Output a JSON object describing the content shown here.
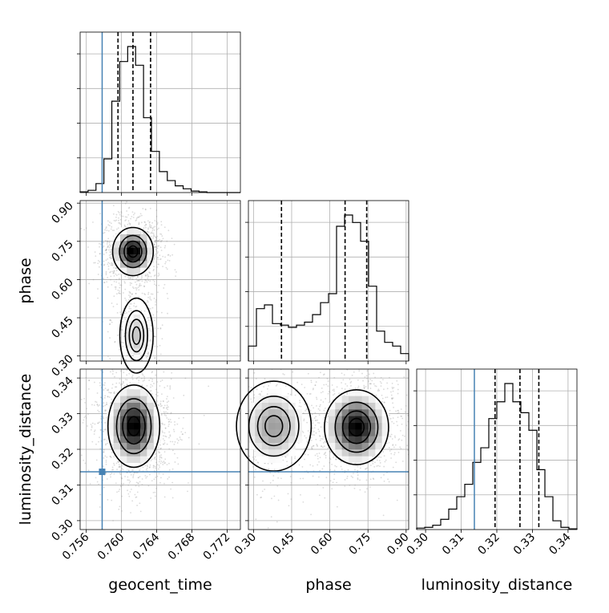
{
  "colors": {
    "truth": "#4682b4",
    "line": "#000000",
    "grid": "#b0b0b0",
    "density": "#000000"
  },
  "chart_data": {
    "type": "corner",
    "parameters": [
      "geocent_time",
      "phase",
      "luminosity_distance"
    ],
    "axis_labels": {
      "geocent_time": "geocent_time",
      "phase": "phase",
      "luminosity_distance": "luminosity_distance"
    },
    "ranges": {
      "geocent_time": [
        0.7553,
        0.7735
      ],
      "phase": [
        0.28,
        0.91
      ],
      "luminosity_distance": [
        0.2975,
        0.3425
      ]
    },
    "ticks": {
      "geocent_time": [
        "0.756",
        "0.760",
        "0.764",
        "0.768",
        "0.772"
      ],
      "phase": [
        "0.30",
        "0.45",
        "0.60",
        "0.75",
        "0.90"
      ],
      "luminosity_distance": [
        "0.30",
        "0.31",
        "0.32",
        "0.33",
        "0.34"
      ]
    },
    "tick_values": {
      "geocent_time": [
        0.756,
        0.76,
        0.764,
        0.768,
        0.772
      ],
      "phase": [
        0.3,
        0.45,
        0.6,
        0.75,
        0.9
      ],
      "luminosity_distance": [
        0.3,
        0.31,
        0.32,
        0.33,
        0.34
      ]
    },
    "truths": {
      "geocent_time": 0.7578,
      "luminosity_distance": 0.3137
    },
    "quantiles": {
      "geocent_time": [
        0.7596,
        0.7613,
        0.7633
      ],
      "phase": [
        0.41,
        0.66,
        0.745
      ],
      "luminosity_distance": [
        0.3195,
        0.3265,
        0.3318
      ]
    },
    "marginals": {
      "geocent_time": {
        "bin_edges": [
          0.7553,
          0.7562,
          0.7571,
          0.758,
          0.7589,
          0.7598,
          0.7607,
          0.7616,
          0.7625,
          0.7634,
          0.7643,
          0.7652,
          0.7661,
          0.767,
          0.7679,
          0.7688,
          0.7697,
          0.7706,
          0.7715,
          0.7724,
          0.7735
        ],
        "counts": [
          1,
          3,
          12,
          45,
          122,
          175,
          195,
          170,
          100,
          55,
          28,
          16,
          9,
          5,
          2,
          1,
          0,
          0,
          0,
          0
        ]
      },
      "phase": {
        "bin_edges": [
          0.28,
          0.3115,
          0.343,
          0.3745,
          0.406,
          0.4375,
          0.469,
          0.5005,
          0.532,
          0.5635,
          0.595,
          0.6265,
          0.658,
          0.6895,
          0.721,
          0.7525,
          0.784,
          0.8155,
          0.847,
          0.8785,
          0.91
        ],
        "counts": [
          20,
          70,
          75,
          50,
          48,
          45,
          48,
          52,
          62,
          78,
          90,
          180,
          195,
          185,
          160,
          100,
          40,
          25,
          20,
          10
        ]
      },
      "luminosity_distance": {
        "bin_edges": [
          0.2975,
          0.29975,
          0.302,
          0.30425,
          0.3065,
          0.30875,
          0.311,
          0.31325,
          0.3155,
          0.31775,
          0.32,
          0.32225,
          0.3245,
          0.32675,
          0.329,
          0.33125,
          0.3335,
          0.33575,
          0.338,
          0.34025,
          0.3425
        ],
        "counts": [
          2,
          3,
          6,
          14,
          28,
          45,
          62,
          92,
          112,
          152,
          175,
          200,
          175,
          160,
          136,
          82,
          45,
          12,
          3,
          1
        ]
      }
    },
    "density_peaks": {
      "phase_vs_geocent_time": [
        {
          "x": 0.7613,
          "y": 0.71,
          "sx": 0.0011,
          "sy": 0.045,
          "w": 1.0
        },
        {
          "x": 0.7617,
          "y": 0.38,
          "sx": 0.0009,
          "sy": 0.07,
          "w": 0.3
        }
      ],
      "luminosity_distance_vs_geocent_time": [
        {
          "x": 0.7614,
          "y": 0.3265,
          "sx": 0.0014,
          "sy": 0.0055,
          "w": 1.0
        }
      ],
      "luminosity_distance_vs_phase": [
        {
          "x": 0.705,
          "y": 0.3262,
          "sx": 0.06,
          "sy": 0.005,
          "w": 1.0
        },
        {
          "x": 0.38,
          "y": 0.3265,
          "sx": 0.07,
          "sy": 0.006,
          "w": 0.45
        }
      ]
    },
    "grid": true
  }
}
